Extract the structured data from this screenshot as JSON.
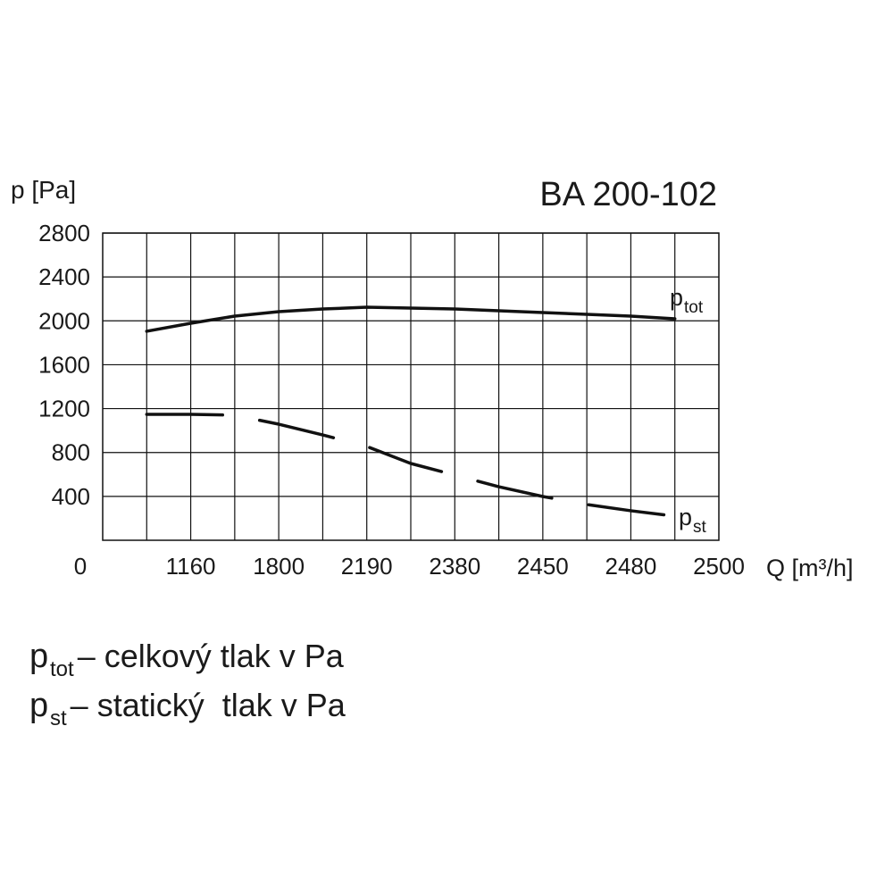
{
  "chart_data": {
    "type": "line",
    "title": "BA 200-102",
    "y_label": "p [Pa]",
    "x_label": "Q [m³/h]",
    "categories": [
      "0",
      null,
      "1160",
      null,
      "1800",
      null,
      "2190",
      null,
      "2380",
      null,
      "2450",
      null,
      "2480",
      null,
      "2500"
    ],
    "ylim": [
      0,
      2800
    ],
    "yticks": [
      400,
      800,
      1200,
      1600,
      2000,
      2400,
      2800
    ],
    "grid": true,
    "series": [
      {
        "name": "p",
        "subscript": "tot",
        "description": "– celkový tlak v Pa",
        "color": "#111111",
        "dashed": false,
        "values": [
          null,
          1905,
          1978,
          2043,
          2084,
          2108,
          2124,
          2116,
          2108,
          2092,
          2076,
          2059,
          2043,
          2019,
          null
        ]
      },
      {
        "name": "p",
        "subscript": "st",
        "description": "– statický  tlak v Pa",
        "color": "#111111",
        "dashed": true,
        "values": [
          null,
          1148,
          1148,
          1140,
          1058,
          960,
          855,
          700,
          594,
          488,
          399,
          326,
          269,
          220,
          null
        ]
      }
    ]
  }
}
